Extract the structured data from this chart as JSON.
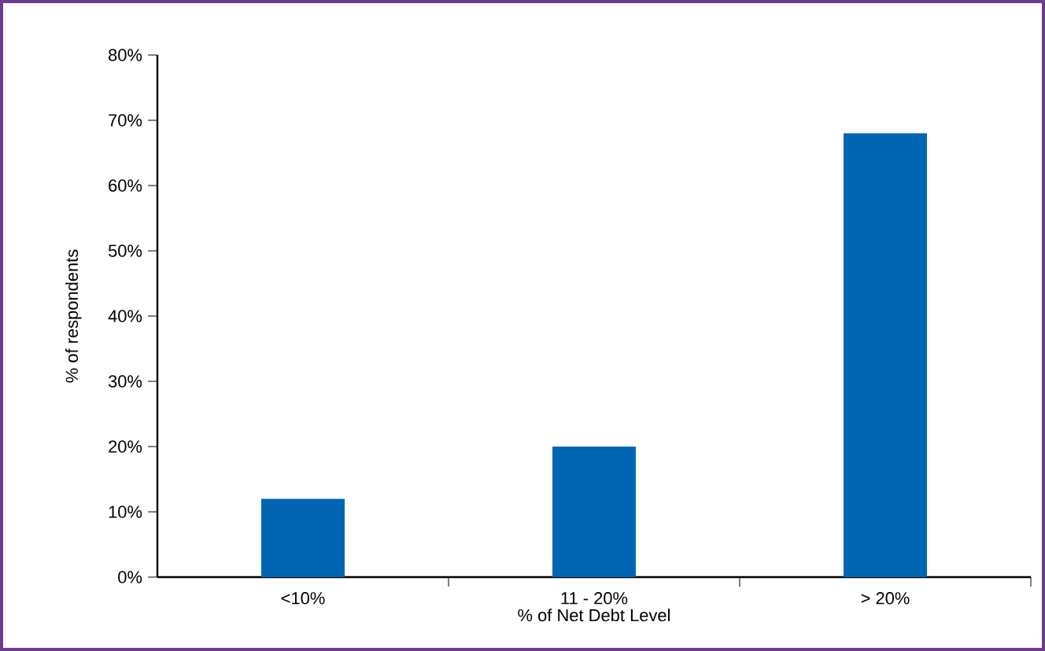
{
  "chart_data": {
    "type": "bar",
    "xlabel": "% of Net Debt Level",
    "ylabel": "% of respondents",
    "categories": [
      "<10%",
      "11 - 20%",
      "> 20%"
    ],
    "values": [
      12,
      20,
      68
    ],
    "color": "#0066b3",
    "ylim": [
      0,
      80
    ],
    "yticks": [
      {
        "value": 0,
        "label": "0%"
      },
      {
        "value": 10,
        "label": "10%"
      },
      {
        "value": 20,
        "label": "20%"
      },
      {
        "value": 30,
        "label": "30%"
      },
      {
        "value": 40,
        "label": "40%"
      },
      {
        "value": 50,
        "label": "50%"
      },
      {
        "value": 60,
        "label": "60%"
      },
      {
        "value": 70,
        "label": "70%"
      },
      {
        "value": 80,
        "label": "80%"
      }
    ],
    "grid": false
  }
}
